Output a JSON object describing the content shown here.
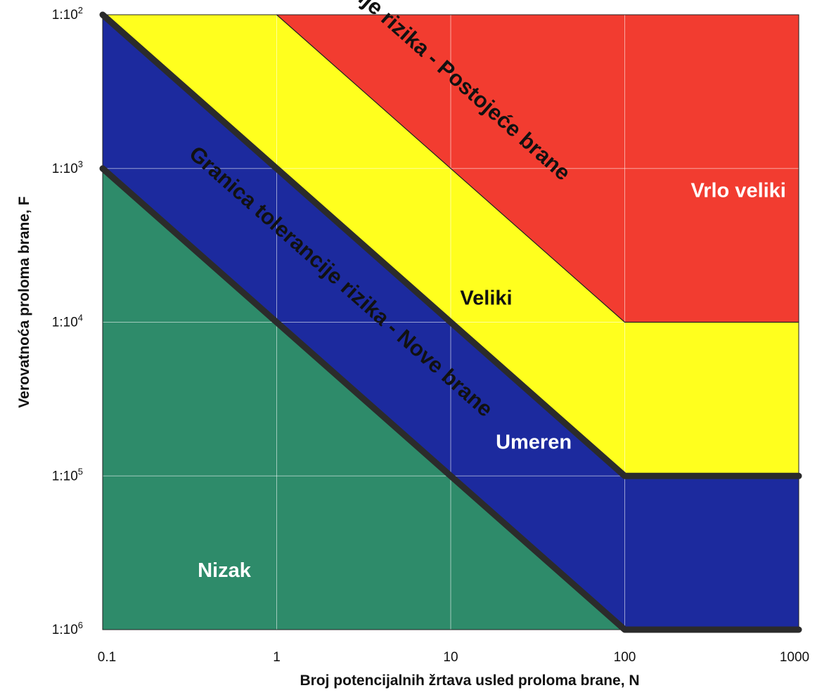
{
  "chart_data": {
    "type": "area",
    "xlabel": "Broj potencijalnih žrtava usled proloma brane, N",
    "ylabel": "Verovatnoća proloma brane, F",
    "x_scale": "log",
    "y_scale": "log",
    "xlim": [
      0.1,
      1000
    ],
    "ylim": [
      1e-06,
      0.01
    ],
    "x_ticks": [
      {
        "value": 0.1,
        "label": "0.1"
      },
      {
        "value": 1,
        "label": "1"
      },
      {
        "value": 10,
        "label": "10"
      },
      {
        "value": 100,
        "label": "100"
      },
      {
        "value": 1000,
        "label": "1000"
      }
    ],
    "y_ticks": [
      {
        "value": 0.01,
        "base": "1:10",
        "exp": "2"
      },
      {
        "value": 0.001,
        "base": "1:10",
        "exp": "3"
      },
      {
        "value": 0.0001,
        "base": "1:10",
        "exp": "4"
      },
      {
        "value": 1e-05,
        "base": "1:10",
        "exp": "5"
      },
      {
        "value": 1e-06,
        "base": "1:10",
        "exp": "6"
      }
    ],
    "grid": true,
    "zones": [
      {
        "name": "Nizak",
        "color": "#2e8b6a",
        "label_at": [
          0.5,
          2.2e-06
        ]
      },
      {
        "name": "Umeren",
        "color": "#1c2a9e",
        "label_at": [
          30,
          1.5e-05
        ]
      },
      {
        "name": "Veliki",
        "color": "#ffff1e",
        "label_at": [
          16,
          0.00013
        ]
      },
      {
        "name": "Vrlo veliki",
        "color": "#f23c30",
        "label_at": [
          450,
          0.00065
        ]
      }
    ],
    "boundaries": [
      {
        "name": "Granica tolerancije rizika - Postojeće brane",
        "points": [
          [
            0.1,
            0.01
          ],
          [
            100,
            1e-05
          ],
          [
            1000,
            1e-05
          ]
        ],
        "label": "Granica tolerancije rizika - Postojeće brane"
      },
      {
        "name": "Granica tolerancije rizika - Nove brane",
        "points": [
          [
            0.1,
            0.001
          ],
          [
            100,
            1e-06
          ],
          [
            1000,
            1e-06
          ]
        ],
        "label": "Granica tolerancije rizika - Nove brane"
      },
      {
        "name": "Veliki / Vrlo veliki",
        "points": [
          [
            1,
            0.01
          ],
          [
            100,
            0.0001
          ],
          [
            1000,
            0.0001
          ]
        ]
      }
    ]
  }
}
